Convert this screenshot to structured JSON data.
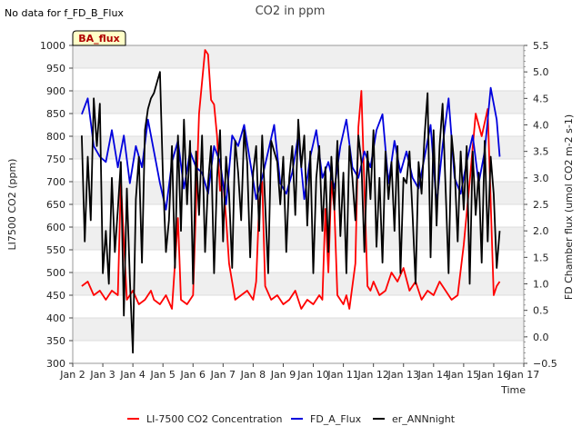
{
  "chart_data": {
    "type": "line",
    "title": "CO2 in ppm",
    "note": "No data for f_FD_B_Flux",
    "badge": "BA_flux",
    "xlabel": "Time",
    "ylabel_left": "LI7500 CO2 (ppm)",
    "ylabel_right": "FD Chamber flux (umol CO2 m-2 s-1)",
    "x_ticks": [
      "Jan 2",
      "Jan 3",
      "Jan 4",
      "Jan 5",
      "Jan 6",
      "Jan 7",
      "Jan 8",
      "Jan 9",
      "Jan 10",
      "Jan 11",
      "Jan 12",
      "Jan 13",
      "Jan 14",
      "Jan 15",
      "Jan 16",
      "Jan 17"
    ],
    "xlim": [
      2,
      17
    ],
    "ylim_left": [
      300,
      1000
    ],
    "ylim_right": [
      -0.5,
      5.5
    ],
    "y_ticks_left": [
      300,
      350,
      400,
      450,
      500,
      550,
      600,
      650,
      700,
      750,
      800,
      850,
      900,
      950,
      1000
    ],
    "y_ticks_right": [
      -0.5,
      0.0,
      0.5,
      1.0,
      1.5,
      2.0,
      2.5,
      3.0,
      3.5,
      4.0,
      4.5,
      5.0,
      5.5
    ],
    "y_tick_labels_right": [
      "−0.5",
      "0.0",
      "0.5",
      "1.0",
      "1.5",
      "2.0",
      "2.5",
      "3.0",
      "3.5",
      "4.0",
      "4.5",
      "5.0",
      "5.5"
    ],
    "legend": [
      "LI-7500 CO2 Concentration",
      "FD_A_Flux",
      "er_ANNnight"
    ],
    "series": [
      {
        "name": "LI-7500 CO2 Concentration",
        "axis": "left",
        "color": "#ff0000",
        "x": [
          2.3,
          2.5,
          2.7,
          2.9,
          3.1,
          3.3,
          3.5,
          3.6,
          3.8,
          4.0,
          4.2,
          4.4,
          4.6,
          4.7,
          4.9,
          5.1,
          5.3,
          5.5,
          5.6,
          5.8,
          6.0,
          6.2,
          6.4,
          6.5,
          6.6,
          6.7,
          6.8,
          6.9,
          7.0,
          7.1,
          7.2,
          7.4,
          7.6,
          7.8,
          8.0,
          8.1,
          8.2,
          8.3,
          8.4,
          8.6,
          8.8,
          9.0,
          9.2,
          9.4,
          9.6,
          9.8,
          10.0,
          10.2,
          10.3,
          10.4,
          10.5,
          10.6,
          10.7,
          10.8,
          10.9,
          11.0,
          11.1,
          11.2,
          11.4,
          11.5,
          11.6,
          11.8,
          11.9,
          12.0,
          12.2,
          12.4,
          12.6,
          12.8,
          13.0,
          13.2,
          13.4,
          13.6,
          13.8,
          14.0,
          14.2,
          14.4,
          14.6,
          14.8,
          15.0,
          15.2,
          15.4,
          15.6,
          15.8,
          16.0,
          16.1,
          16.2
        ],
        "y": [
          470,
          480,
          450,
          460,
          440,
          460,
          450,
          700,
          440,
          460,
          430,
          440,
          460,
          440,
          430,
          450,
          420,
          620,
          440,
          430,
          450,
          850,
          990,
          980,
          880,
          870,
          800,
          680,
          700,
          620,
          520,
          440,
          450,
          460,
          440,
          480,
          650,
          700,
          470,
          440,
          450,
          430,
          440,
          460,
          420,
          440,
          430,
          450,
          440,
          640,
          500,
          700,
          640,
          450,
          440,
          430,
          450,
          420,
          520,
          820,
          900,
          470,
          460,
          480,
          450,
          460,
          500,
          480,
          510,
          460,
          480,
          440,
          460,
          450,
          480,
          460,
          440,
          450,
          560,
          700,
          850,
          800,
          860,
          450,
          470,
          480
        ]
      },
      {
        "name": "FD_A_Flux",
        "axis": "right",
        "color": "#0000dd",
        "x": [
          2.3,
          2.5,
          2.7,
          2.9,
          3.1,
          3.3,
          3.5,
          3.7,
          3.9,
          4.1,
          4.3,
          4.5,
          4.7,
          4.9,
          5.1,
          5.3,
          5.5,
          5.7,
          5.9,
          6.1,
          6.3,
          6.5,
          6.7,
          6.9,
          7.1,
          7.3,
          7.5,
          7.7,
          7.9,
          8.1,
          8.3,
          8.5,
          8.7,
          8.9,
          9.1,
          9.3,
          9.5,
          9.7,
          9.9,
          10.1,
          10.3,
          10.5,
          10.7,
          10.9,
          11.1,
          11.3,
          11.5,
          11.7,
          11.9,
          12.1,
          12.3,
          12.5,
          12.7,
          12.9,
          13.1,
          13.3,
          13.5,
          13.7,
          13.9,
          14.1,
          14.3,
          14.5,
          14.7,
          14.9,
          15.1,
          15.3,
          15.5,
          15.7,
          15.9,
          16.1,
          16.2
        ],
        "y": [
          4.2,
          4.5,
          3.6,
          3.4,
          3.3,
          3.9,
          3.2,
          3.8,
          2.9,
          3.6,
          3.2,
          4.1,
          3.5,
          2.9,
          2.4,
          3.3,
          3.7,
          2.8,
          3.5,
          3.2,
          3.1,
          2.7,
          3.6,
          3.3,
          2.5,
          3.8,
          3.6,
          4.0,
          3.3,
          2.6,
          3.0,
          3.5,
          4.0,
          2.9,
          2.7,
          3.1,
          3.8,
          2.6,
          3.4,
          3.9,
          3.0,
          3.3,
          2.8,
          3.6,
          4.1,
          3.2,
          3.0,
          3.5,
          3.2,
          3.9,
          4.2,
          2.9,
          3.7,
          3.1,
          3.5,
          3.0,
          2.8,
          3.4,
          4.0,
          2.5,
          3.6,
          4.5,
          3.0,
          2.7,
          3.3,
          3.8,
          2.9,
          3.5,
          4.7,
          4.1,
          3.4
        ]
      },
      {
        "name": "er_ANNnight",
        "axis": "right",
        "color": "#000000",
        "x": [
          2.3,
          2.4,
          2.5,
          2.6,
          2.7,
          2.8,
          2.9,
          3.0,
          3.1,
          3.2,
          3.3,
          3.4,
          3.5,
          3.6,
          3.7,
          3.8,
          3.9,
          4.0,
          4.1,
          4.2,
          4.3,
          4.4,
          4.5,
          4.6,
          4.7,
          4.8,
          4.9,
          5.0,
          5.1,
          5.2,
          5.3,
          5.4,
          5.5,
          5.6,
          5.7,
          5.8,
          5.9,
          6.0,
          6.1,
          6.2,
          6.3,
          6.4,
          6.5,
          6.6,
          6.7,
          6.8,
          6.9,
          7.0,
          7.1,
          7.2,
          7.3,
          7.4,
          7.5,
          7.6,
          7.7,
          7.8,
          7.9,
          8.0,
          8.1,
          8.2,
          8.3,
          8.4,
          8.5,
          8.6,
          8.7,
          8.8,
          8.9,
          9.0,
          9.1,
          9.2,
          9.3,
          9.4,
          9.5,
          9.6,
          9.7,
          9.8,
          9.9,
          10.0,
          10.1,
          10.2,
          10.3,
          10.4,
          10.5,
          10.6,
          10.7,
          10.8,
          10.9,
          11.0,
          11.1,
          11.2,
          11.3,
          11.4,
          11.5,
          11.6,
          11.7,
          11.8,
          11.9,
          12.0,
          12.1,
          12.2,
          12.3,
          12.4,
          12.5,
          12.6,
          12.7,
          12.8,
          12.9,
          13.0,
          13.1,
          13.2,
          13.3,
          13.4,
          13.5,
          13.6,
          13.7,
          13.8,
          13.9,
          14.0,
          14.1,
          14.2,
          14.3,
          14.4,
          14.5,
          14.6,
          14.7,
          14.8,
          14.9,
          15.0,
          15.1,
          15.2,
          15.3,
          15.4,
          15.5,
          15.6,
          15.7,
          15.8,
          15.9,
          16.0,
          16.1,
          16.2
        ],
        "y": [
          3.8,
          1.8,
          3.4,
          2.2,
          4.5,
          3.6,
          4.4,
          1.2,
          2.0,
          1.0,
          3.0,
          1.6,
          2.4,
          3.3,
          0.4,
          2.8,
          1.1,
          -0.3,
          2.6,
          3.4,
          1.4,
          3.9,
          4.3,
          4.5,
          4.6,
          4.8,
          5.0,
          3.0,
          1.6,
          2.2,
          3.6,
          1.3,
          3.8,
          2.0,
          4.1,
          2.5,
          3.7,
          1.0,
          3.5,
          2.3,
          3.8,
          1.6,
          2.9,
          3.6,
          1.2,
          3.0,
          3.9,
          1.8,
          3.4,
          2.7,
          1.3,
          3.7,
          3.1,
          2.2,
          3.9,
          3.3,
          1.5,
          3.1,
          3.6,
          2.0,
          3.8,
          2.5,
          1.2,
          3.7,
          3.5,
          3.3,
          2.5,
          3.4,
          1.6,
          3.0,
          3.6,
          2.3,
          4.1,
          3.2,
          3.8,
          2.1,
          3.5,
          1.2,
          3.0,
          3.6,
          2.0,
          3.2,
          1.6,
          3.4,
          2.4,
          3.7,
          1.9,
          3.1,
          1.2,
          3.6,
          3.0,
          2.2,
          3.8,
          3.3,
          1.6,
          3.5,
          2.6,
          3.9,
          1.7,
          3.0,
          1.4,
          3.5,
          2.6,
          3.3,
          2.0,
          3.6,
          1.2,
          3.0,
          2.9,
          3.5,
          2.3,
          1.0,
          3.3,
          2.7,
          3.8,
          4.6,
          1.5,
          3.9,
          2.1,
          3.6,
          4.4,
          2.8,
          1.2,
          3.8,
          3.2,
          1.8,
          3.5,
          2.4,
          3.6,
          1.0,
          3.5,
          2.3,
          3.1,
          1.4,
          3.7,
          1.8,
          3.4,
          2.7,
          1.3,
          2.0
        ]
      }
    ]
  }
}
